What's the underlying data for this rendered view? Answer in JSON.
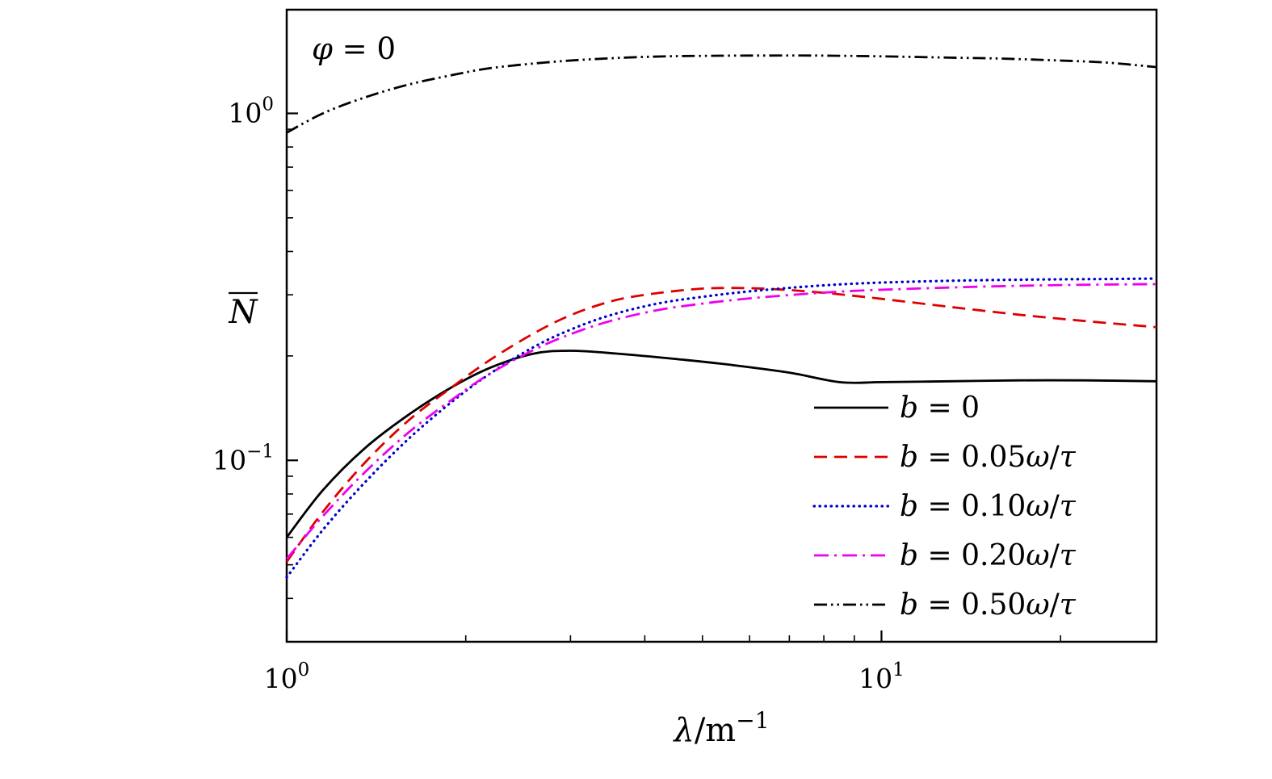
{
  "figure": {
    "background": "#ffffff"
  },
  "chart_data": {
    "type": "line",
    "xscale": "log",
    "yscale": "log",
    "xlim": [
      1,
      29
    ],
    "ylim": [
      0.03,
      1.99
    ],
    "xlabel": {
      "var": "λ",
      "rest": "/m",
      "sup": "−1"
    },
    "ylabel": {
      "main": "N",
      "overline": true
    },
    "annotation": "φ = 0",
    "grid": false,
    "legend_position": "lower right",
    "x_ticks": {
      "major": [
        {
          "value": 1,
          "base": "10",
          "exp": "0"
        },
        {
          "value": 10,
          "base": "10",
          "exp": "1"
        }
      ],
      "minor": [
        2,
        3,
        4,
        5,
        6,
        7,
        8,
        9,
        20
      ]
    },
    "y_ticks": {
      "major": [
        {
          "value": 0.1,
          "base": "10",
          "exp": "−1"
        },
        {
          "value": 1,
          "base": "10",
          "exp": "0"
        }
      ],
      "minor": [
        0.04,
        0.05,
        0.06,
        0.07,
        0.08,
        0.09,
        0.2,
        0.3,
        0.4,
        0.5,
        0.6,
        0.7,
        0.8,
        0.9
      ]
    },
    "series": [
      {
        "name": "b = 0",
        "color": "#000000",
        "dash": "solid",
        "width": 2.8,
        "x": [
          1,
          1.15,
          1.35,
          1.6,
          1.9,
          2.2,
          2.6,
          3.0,
          3.6,
          4.5,
          5.5,
          7,
          8.5,
          10,
          13,
          17,
          22,
          29
        ],
        "y": [
          0.06,
          0.082,
          0.108,
          0.135,
          0.163,
          0.185,
          0.203,
          0.207,
          0.203,
          0.196,
          0.189,
          0.179,
          0.168,
          0.168,
          0.169,
          0.17,
          0.17,
          0.169
        ]
      },
      {
        "name": "b = 0.05ω/τ",
        "color": "#dd0000",
        "dash": "dashed",
        "width": 2.8,
        "x": [
          1,
          1.15,
          1.35,
          1.6,
          1.9,
          2.2,
          2.6,
          3.0,
          3.5,
          4.0,
          4.8,
          5.5,
          6.5,
          8,
          10,
          13,
          17,
          22,
          29
        ],
        "y": [
          0.051,
          0.071,
          0.098,
          0.13,
          0.163,
          0.195,
          0.232,
          0.262,
          0.287,
          0.3,
          0.311,
          0.314,
          0.312,
          0.304,
          0.292,
          0.277,
          0.263,
          0.252,
          0.242
        ]
      },
      {
        "name": "b = 0.10ω/τ",
        "color": "#0000cc",
        "dash": "dotted",
        "width": 3.2,
        "x": [
          1,
          1.15,
          1.35,
          1.6,
          1.9,
          2.2,
          2.6,
          3.0,
          3.5,
          4.2,
          5,
          6,
          7.5,
          9,
          11,
          14,
          18,
          23,
          29
        ],
        "y": [
          0.046,
          0.063,
          0.086,
          0.115,
          0.148,
          0.178,
          0.212,
          0.238,
          0.262,
          0.283,
          0.296,
          0.307,
          0.317,
          0.323,
          0.327,
          0.33,
          0.332,
          0.333,
          0.334
        ]
      },
      {
        "name": "b = 0.20ω/τ",
        "color": "#ee00ee",
        "dash": "dashdot",
        "width": 2.8,
        "x": [
          1,
          1.15,
          1.35,
          1.6,
          1.9,
          2.2,
          2.6,
          3.0,
          3.5,
          4.2,
          5,
          6,
          7.5,
          9,
          11,
          14,
          18,
          23,
          29
        ],
        "y": [
          0.052,
          0.069,
          0.092,
          0.12,
          0.15,
          0.178,
          0.208,
          0.231,
          0.252,
          0.271,
          0.283,
          0.293,
          0.302,
          0.308,
          0.312,
          0.316,
          0.319,
          0.321,
          0.322
        ]
      },
      {
        "name": "b = 0.50ω/τ",
        "color": "#000000",
        "dash": "dashdotdot",
        "width": 2.8,
        "x": [
          1,
          1.15,
          1.35,
          1.6,
          1.9,
          2.2,
          2.7,
          3.2,
          4,
          5,
          6.5,
          8,
          10,
          13,
          16,
          20,
          24,
          29
        ],
        "y": [
          0.88,
          1.0,
          1.11,
          1.21,
          1.29,
          1.35,
          1.4,
          1.43,
          1.455,
          1.465,
          1.468,
          1.467,
          1.46,
          1.448,
          1.438,
          1.42,
          1.4,
          1.36
        ]
      }
    ]
  }
}
